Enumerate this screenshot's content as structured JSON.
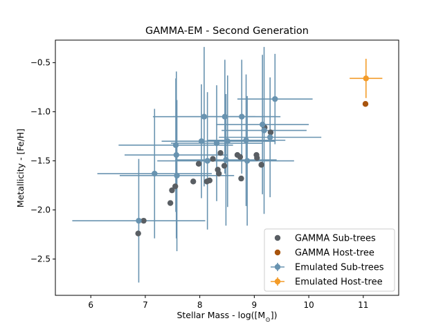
{
  "chart_data": {
    "type": "scatter",
    "title": "GAMMA-EM - Second Generation",
    "xlabel": "Stellar Mass - log([M$_\\odot$])",
    "ylabel": "Metallicity - [Fe/H]",
    "xlim": [
      5.35,
      11.65
    ],
    "ylim": [
      -2.87,
      -0.27
    ],
    "x_ticks": [
      "6",
      "7",
      "8",
      "9",
      "10",
      "11"
    ],
    "x_tick_values": [
      6,
      7,
      8,
      9,
      10,
      11
    ],
    "y_ticks": [
      "−0.5",
      "−1.0",
      "−1.5",
      "−2.0",
      "−2.5"
    ],
    "y_tick_values": [
      -0.5,
      -1.0,
      -1.5,
      -2.0,
      -2.5
    ],
    "grid": false,
    "legend_position": "lower right",
    "series": [
      {
        "name": "GAMMA Sub-trees",
        "kind": "scatter",
        "color": "#595e63",
        "points": [
          [
            6.87,
            -2.24
          ],
          [
            6.97,
            -2.11
          ],
          [
            7.46,
            -1.93
          ],
          [
            7.49,
            -1.8
          ],
          [
            7.55,
            -1.76
          ],
          [
            7.88,
            -1.71
          ],
          [
            7.98,
            -1.53
          ],
          [
            8.13,
            -1.71
          ],
          [
            8.18,
            -1.7
          ],
          [
            8.24,
            -1.48
          ],
          [
            8.33,
            -1.59
          ],
          [
            8.35,
            -1.63
          ],
          [
            8.38,
            -1.42
          ],
          [
            8.45,
            -1.55
          ],
          [
            8.69,
            -1.44
          ],
          [
            8.74,
            -1.46
          ],
          [
            8.76,
            -1.68
          ],
          [
            9.04,
            -1.44
          ],
          [
            9.05,
            -1.47
          ],
          [
            9.13,
            -1.54
          ],
          [
            9.19,
            -1.16
          ],
          [
            9.3,
            -1.21
          ]
        ]
      },
      {
        "name": "GAMMA Host-tree",
        "kind": "scatter",
        "color": "#a8540d",
        "points": [
          [
            11.04,
            -0.92
          ]
        ]
      },
      {
        "name": "Emulated Sub-trees",
        "kind": "errorbar",
        "color": "#6893b0",
        "points": [
          {
            "x": 6.88,
            "y": -2.11,
            "xerr": 1.22,
            "yerr": 0.63
          },
          {
            "x": 7.17,
            "y": -1.63,
            "xerr": 1.05,
            "yerr": 0.66
          },
          {
            "x": 7.56,
            "y": -1.34,
            "xerr": 1.05,
            "yerr": 0.68
          },
          {
            "x": 7.57,
            "y": -1.44,
            "xerr": 0.95,
            "yerr": 0.85
          },
          {
            "x": 7.58,
            "y": -1.65,
            "xerr": 1.05,
            "yerr": 0.77
          },
          {
            "x": 8.03,
            "y": -1.3,
            "xerr": 0.73,
            "yerr": 0.58
          },
          {
            "x": 8.08,
            "y": -1.05,
            "xerr": 0.94,
            "yerr": 0.71
          },
          {
            "x": 8.14,
            "y": -1.5,
            "xerr": 0.92,
            "yerr": 0.7
          },
          {
            "x": 8.31,
            "y": -1.32,
            "xerr": 0.84,
            "yerr": 0.59
          },
          {
            "x": 8.46,
            "y": -1.05,
            "xerr": 0.95,
            "yerr": 0.58
          },
          {
            "x": 8.48,
            "y": -1.49,
            "xerr": 0.93,
            "yerr": 0.67
          },
          {
            "x": 8.51,
            "y": -1.3,
            "xerr": 0.88,
            "yerr": 0.67
          },
          {
            "x": 8.77,
            "y": -1.05,
            "xerr": 0.71,
            "yerr": 0.58
          },
          {
            "x": 8.85,
            "y": -1.29,
            "xerr": 0.72,
            "yerr": 0.67
          },
          {
            "x": 8.87,
            "y": -1.5,
            "xerr": 0.86,
            "yerr": 0.66
          },
          {
            "x": 9.15,
            "y": -1.13,
            "xerr": 0.85,
            "yerr": 0.71
          },
          {
            "x": 9.18,
            "y": -1.19,
            "xerr": 0.78,
            "yerr": 0.85
          },
          {
            "x": 9.29,
            "y": -1.26,
            "xerr": 0.94,
            "yerr": 0.61
          },
          {
            "x": 9.38,
            "y": -0.87,
            "xerr": 0.69,
            "yerr": 0.46
          }
        ]
      },
      {
        "name": "Emulated Host-tree",
        "kind": "errorbar",
        "color": "#f39b28",
        "points": [
          {
            "x": 11.05,
            "y": -0.66,
            "xerr": 0.3,
            "yerr": 0.2
          }
        ]
      }
    ]
  }
}
